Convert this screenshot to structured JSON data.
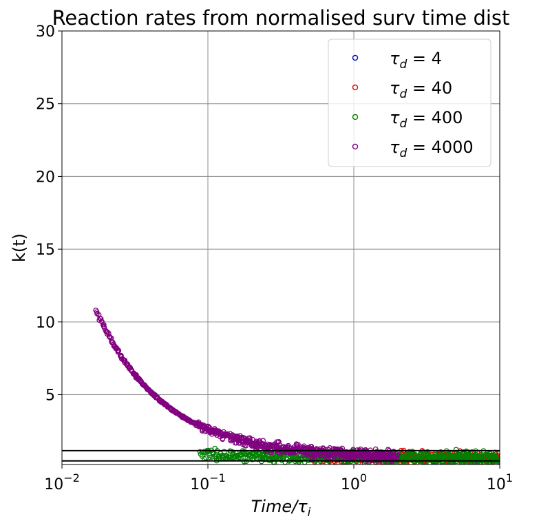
{
  "chart_data": {
    "type": "scatter",
    "title": "Reaction rates from normalised surv time dist",
    "xlabel": "Time/τ",
    "xlabel_sub": "i",
    "ylabel": "k(t)",
    "xscale": "log",
    "xlim": [
      0.01,
      10
    ],
    "ylim": [
      0.2,
      30
    ],
    "grid": true,
    "legend_position": "top-right",
    "xticks": [
      {
        "value": 0.01,
        "base": "10",
        "exp": "−2"
      },
      {
        "value": 0.1,
        "base": "10",
        "exp": "−1"
      },
      {
        "value": 1,
        "base": "10",
        "exp": "0"
      },
      {
        "value": 10,
        "base": "10",
        "exp": "1"
      }
    ],
    "yticks": [
      5,
      10,
      15,
      20,
      25,
      30
    ],
    "hlines": [
      {
        "y": 1.15,
        "color": "#000000"
      },
      {
        "y": 0.45,
        "color": "#000000"
      }
    ],
    "series": [
      {
        "name": "τd = 4",
        "label_main": "τ",
        "label_sub": "d",
        "label_rest": " = 4",
        "tau": 4,
        "color": "#0000cc",
        "x_start": 3.5,
        "x_end": 10,
        "n": 45
      },
      {
        "name": "τd = 40",
        "label_main": "τ",
        "label_sub": "d",
        "label_rest": " = 40",
        "tau": 40,
        "color": "#ee0000",
        "x_start": 0.5,
        "x_end": 10,
        "n": 320
      },
      {
        "name": "τd = 400",
        "label_main": "τ",
        "label_sub": "d",
        "label_rest": " = 400",
        "tau": 400,
        "color": "#008000",
        "x_start": 0.088,
        "x_end": 10,
        "n": 620
      },
      {
        "name": "τd = 4000",
        "label_main": "τ",
        "label_sub": "d",
        "label_rest": " = 4000",
        "tau": 4000,
        "color": "#800080",
        "x_start": 0.017,
        "x_end": 2.0,
        "n": 720
      }
    ]
  }
}
